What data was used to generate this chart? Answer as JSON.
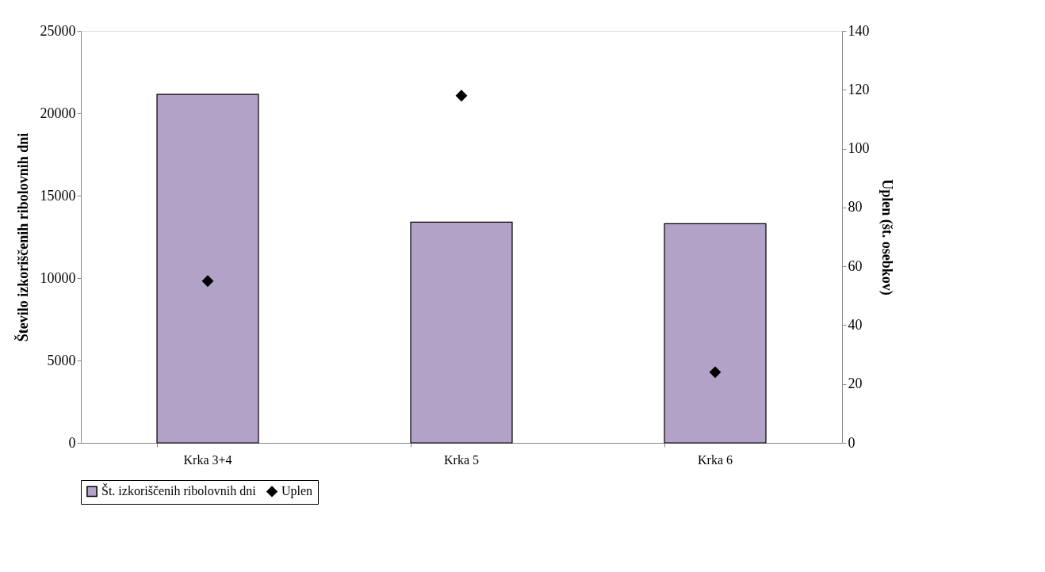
{
  "chart_data": {
    "type": "bar",
    "categories": [
      "Krka 3+4",
      "Krka 5",
      "Krka 6"
    ],
    "series": [
      {
        "name": "Št. izkoriščenih ribolovnih dni",
        "color": "#b2a2c7",
        "values": [
          21150,
          13400,
          13300
        ]
      },
      {
        "name": "Uplen",
        "type": "scatter",
        "axis": "y2",
        "color": "#000000",
        "marker": "diamond",
        "values": [
          55,
          118,
          24
        ]
      }
    ],
    "ylabel": "Število izkoriščenih ribolovnih dni",
    "y2label": "Uplen (št. osebkov)",
    "ylim": [
      0,
      25000
    ],
    "yticks": [
      0,
      5000,
      10000,
      15000,
      20000,
      25000
    ],
    "y2lim": [
      0,
      140
    ],
    "y2ticks": [
      0,
      20,
      40,
      60,
      80,
      100,
      120,
      140
    ],
    "grid": false,
    "legend": "bottom"
  }
}
